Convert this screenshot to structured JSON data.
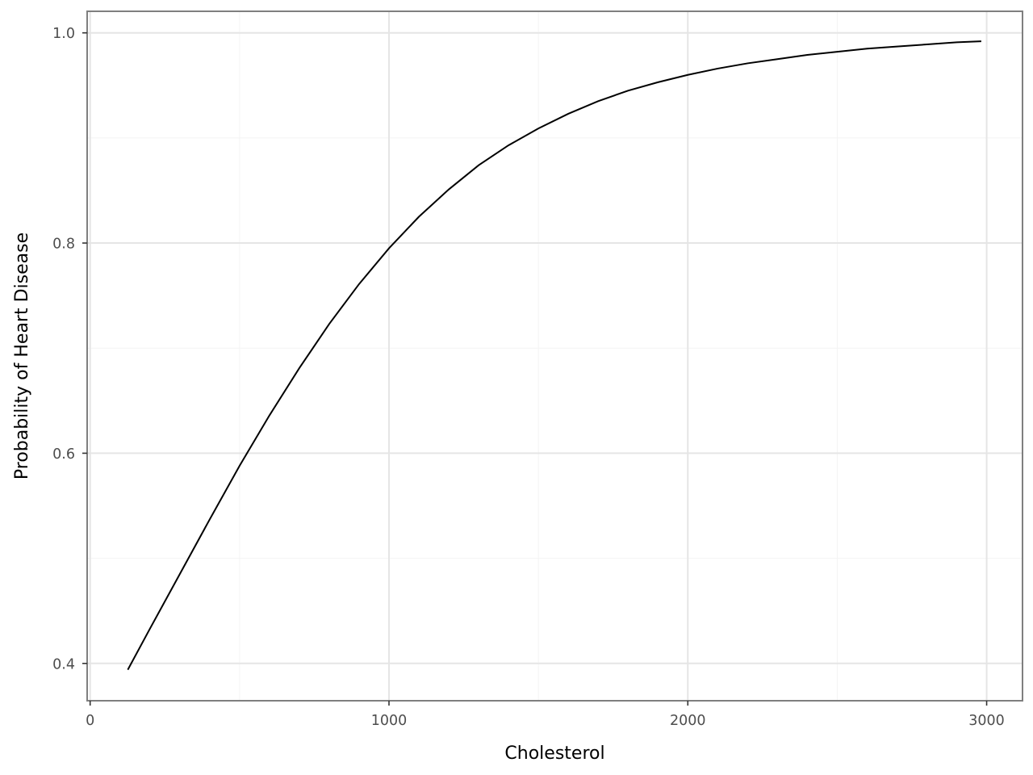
{
  "chart_data": {
    "type": "line",
    "title": "",
    "xlabel": "Cholesterol",
    "ylabel": "Probability of Heart Disease",
    "xlim": [
      -10,
      3120
    ],
    "ylim": [
      0.3645,
      1.0205
    ],
    "x_ticks": [
      0,
      1000,
      2000,
      3000
    ],
    "x_tick_labels": [
      "0",
      "1000",
      "2000",
      "3000"
    ],
    "x_minor_ticks": [
      500,
      1500,
      2500
    ],
    "y_ticks": [
      0.4,
      0.6,
      0.8,
      1.0
    ],
    "y_tick_labels": [
      "0.4",
      "0.6",
      "0.8",
      "1.0"
    ],
    "y_minor_ticks": [
      0.5,
      0.7,
      0.9
    ],
    "grid": true,
    "legend": "none",
    "colors": {
      "line": "#000000",
      "grid": "#e5e5e5",
      "border": "#7f7f7f"
    },
    "series": [
      {
        "x": [
          126,
          200,
          300,
          400,
          500,
          600,
          700,
          800,
          900,
          1000,
          1100,
          1200,
          1300,
          1400,
          1500,
          1600,
          1700,
          1800,
          1900,
          2000,
          2100,
          2200,
          2300,
          2400,
          2500,
          2600,
          2700,
          2800,
          2900,
          2982
        ],
        "y": [
          0.394,
          0.433,
          0.485,
          0.537,
          0.588,
          0.636,
          0.681,
          0.723,
          0.761,
          0.795,
          0.825,
          0.851,
          0.874,
          0.893,
          0.909,
          0.923,
          0.935,
          0.945,
          0.953,
          0.96,
          0.966,
          0.971,
          0.975,
          0.979,
          0.982,
          0.985,
          0.987,
          0.989,
          0.991,
          0.992
        ]
      }
    ]
  }
}
